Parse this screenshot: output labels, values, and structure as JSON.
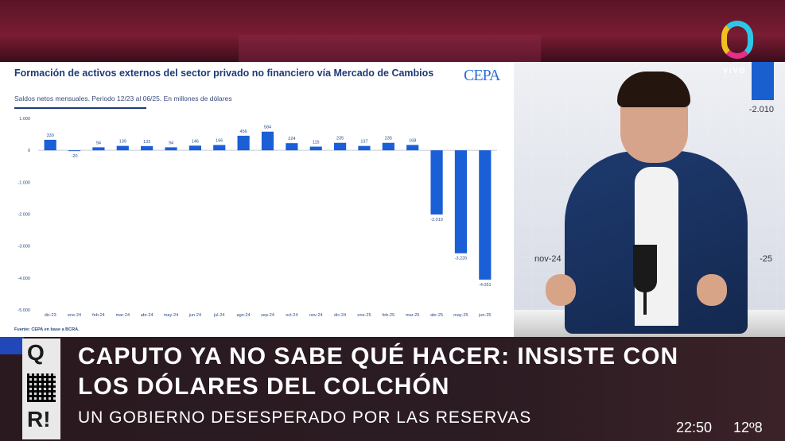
{
  "channel": {
    "live_label": "VIVO"
  },
  "right_screen": {
    "bar_label": "-2.010",
    "tick_left": "nov-24",
    "tick_right": "-25"
  },
  "chart_data": {
    "type": "bar",
    "title": "Formación de activos externos del sector privado no financiero vía Mercado de Cambios",
    "subtitle": "Saldos netos mensuales. Periodo 12/23 al 06/25. En millones de dólares",
    "source": "Fuente: CEPA en base a BCRA.",
    "logo_text": "CEPA",
    "categories": [
      "dic-23",
      "ene-24",
      "feb-24",
      "mar-24",
      "abr-24",
      "may-24",
      "jun-24",
      "jul-24",
      "ago-24",
      "sep-24",
      "oct-24",
      "nov-24",
      "dic-24",
      "ene-25",
      "feb-25",
      "mar-25",
      "abr-25",
      "may-25",
      "jun-25"
    ],
    "values": [
      330,
      -20,
      94,
      139,
      133,
      94,
      146,
      166,
      456,
      584,
      224,
      115,
      235,
      137,
      235,
      168,
      -2010,
      -3226,
      -4051
    ],
    "value_labels": [
      "330",
      "-20",
      "94",
      "139",
      "133",
      "94",
      "146",
      "166",
      "456",
      "584",
      "224",
      "115",
      "235",
      "137",
      "235",
      "168",
      "-2.010",
      "-3.226",
      "-4.051"
    ],
    "yticks": [
      1000,
      0,
      -1000,
      -2000,
      -3000,
      -4000,
      -5000
    ],
    "ytick_labels": [
      "1.000",
      "0",
      "-1.000",
      "-2.000",
      "-3.000",
      "-4.000",
      "-5.000"
    ],
    "ylim": [
      -5000,
      1000
    ],
    "color": "#1a5fd6",
    "grid": false
  },
  "lower_third": {
    "headline_1": "CAPUTO YA NO SABE QUÉ HACER: INSISTE CON",
    "headline_2": "LOS DÓLARES DEL COLCHÓN",
    "subheadline": "UN GOBIERNO DESESPERADO POR LAS RESERVAS",
    "clock": "22:50",
    "temperature": "12º8",
    "qr_top_letter": "Q",
    "qr_bottom_letter": "R!"
  }
}
